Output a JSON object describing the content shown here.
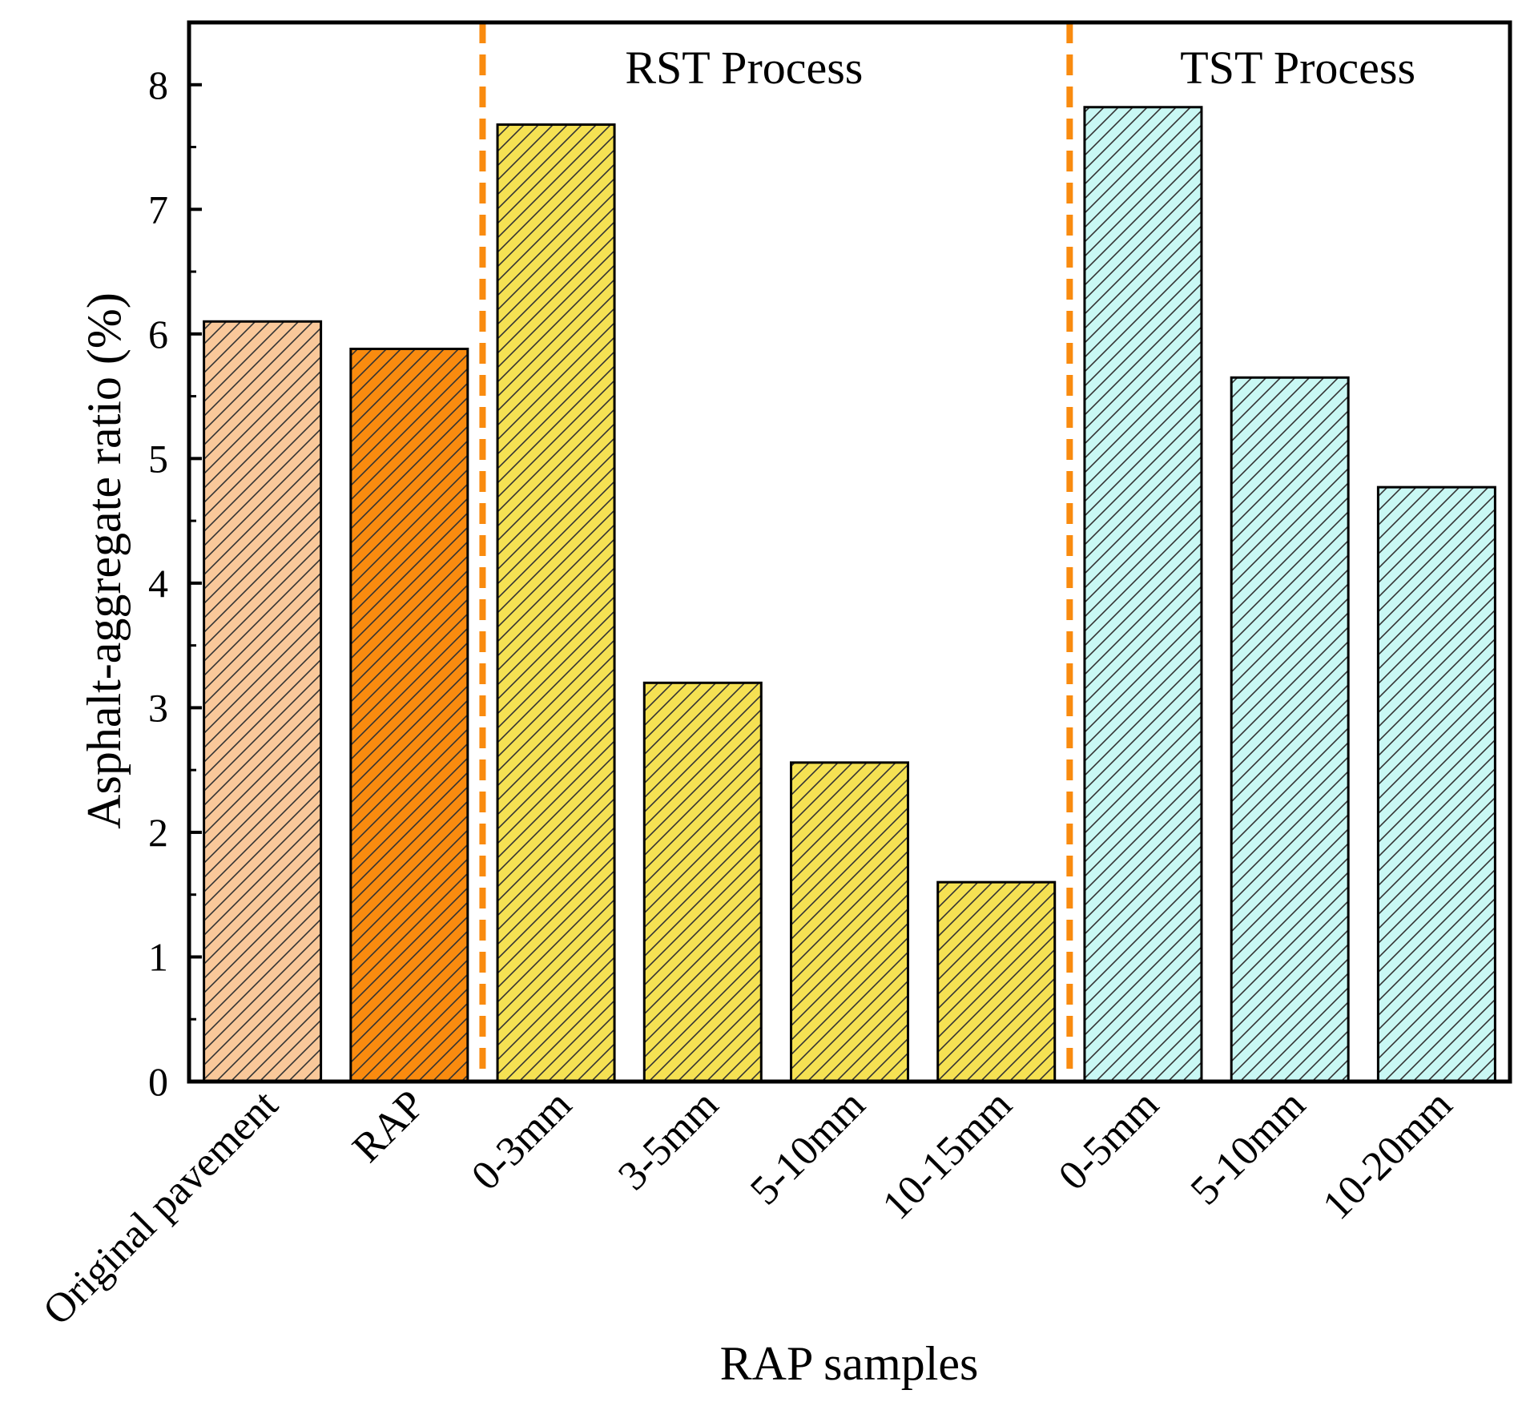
{
  "chart_data": {
    "type": "bar",
    "xlabel": "RAP samples",
    "ylabel": "Asphalt-aggregate ratio (%)",
    "ylim": [
      0,
      8.5
    ],
    "yticks": [
      0,
      1,
      2,
      3,
      4,
      5,
      6,
      7,
      8
    ],
    "grid": false,
    "categories": [
      "Original pavement",
      "RAP",
      "0-3mm",
      "3-5mm",
      "5-10mm",
      "10-15mm",
      "0-5mm",
      "5-10mm",
      "10-20mm"
    ],
    "values": [
      6.1,
      5.88,
      7.68,
      3.2,
      2.56,
      1.6,
      7.82,
      5.65,
      4.77
    ],
    "colors": [
      "#f9c89a",
      "#f98b0f",
      "#f5e153",
      "#f5e153",
      "#f5e153",
      "#f5e153",
      "#c9f8f4",
      "#c9f8f4",
      "#c9f8f4"
    ],
    "hatched": [
      true,
      true,
      true,
      true,
      true,
      true,
      true,
      true,
      true
    ],
    "groups": [
      {
        "label": "RST Process",
        "start_index": 2,
        "end_index": 5
      },
      {
        "label": "TST Process",
        "start_index": 6,
        "end_index": 8
      }
    ],
    "divider_color": "#f98b0f"
  }
}
